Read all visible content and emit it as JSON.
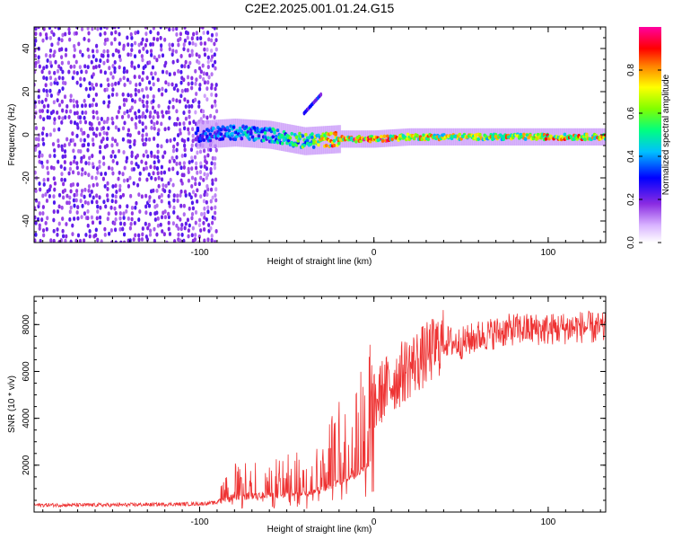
{
  "title": "C2E2.2025.001.01.24.G15",
  "chart_data": [
    {
      "type": "heatmap",
      "name": "spectrogram",
      "xlabel": "Height of straight line (km)",
      "ylabel": "Frequency (Hz)",
      "xlim": [
        -195,
        133
      ],
      "ylim": [
        -50,
        50
      ],
      "xticks": [
        -100,
        0,
        100
      ],
      "xtick_labels": [
        "-100",
        "0",
        "100"
      ],
      "yticks": [
        -40,
        -20,
        0,
        20,
        40
      ],
      "ytick_labels": [
        "-40",
        "-20",
        "0",
        "20",
        "40"
      ],
      "colorbar": {
        "label": "Normalized spectral amplitude",
        "range": [
          0,
          1
        ],
        "ticks": [
          0.0,
          0.2,
          0.4,
          0.6,
          0.8
        ],
        "tick_labels": [
          "0.0",
          "0.2",
          "0.4",
          "0.6",
          "0.8"
        ],
        "colormap": "rainbow"
      },
      "features": [
        {
          "desc": "broadband noise",
          "x_range": [
            -195,
            -95
          ],
          "freq_range": [
            -50,
            50
          ],
          "amplitude": 0.15
        },
        {
          "desc": "signal tone",
          "x": [
            -100,
            -80,
            -60,
            -40,
            -20,
            0,
            20,
            60,
            100,
            133
          ],
          "freq": [
            0,
            1,
            0,
            -3,
            -2,
            -2,
            -1,
            -1,
            -1,
            -1
          ],
          "amplitude": [
            0.35,
            0.45,
            0.5,
            0.6,
            0.9,
            0.95,
            0.8,
            0.75,
            0.85,
            0.8
          ]
        }
      ]
    },
    {
      "type": "line",
      "name": "snr",
      "xlabel": "Height of straight line (km)",
      "ylabel": "SNR (10 * v/v)",
      "xlim": [
        -195,
        133
      ],
      "ylim": [
        0,
        9200
      ],
      "xticks": [
        -100,
        0,
        100
      ],
      "xtick_labels": [
        "-100",
        "0",
        "100"
      ],
      "yticks": [
        2000,
        4000,
        6000,
        8000
      ],
      "ytick_labels": [
        "2000",
        "4000",
        "6000",
        "8000"
      ],
      "color": "#ee3333",
      "series": [
        {
          "name": "SNR",
          "x": [
            -195,
            -150,
            -100,
            -90,
            -85,
            -80,
            -60,
            -40,
            -30,
            -20,
            -10,
            0,
            5,
            10,
            20,
            30,
            40,
            50,
            60,
            80,
            100,
            120,
            133
          ],
          "y": [
            300,
            300,
            350,
            400,
            1000,
            1100,
            1200,
            1400,
            1800,
            2500,
            3300,
            4500,
            5200,
            5500,
            6200,
            6700,
            7300,
            7200,
            7500,
            7800,
            7800,
            7900,
            7800
          ]
        }
      ]
    }
  ]
}
